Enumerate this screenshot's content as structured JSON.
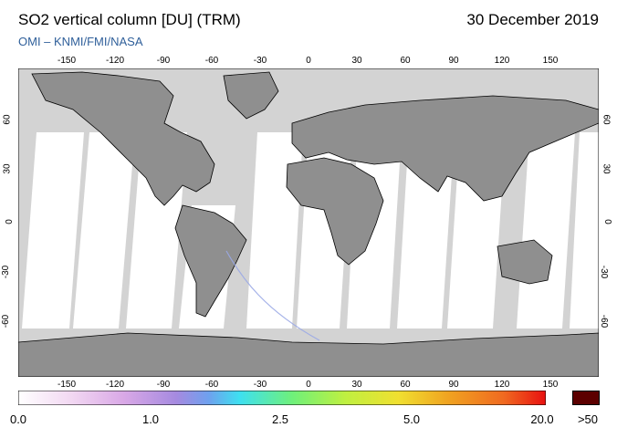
{
  "title": "SO2 vertical column [DU] (TRM)",
  "date": "30 December 2019",
  "source": "OMI  –  KNMI/FMI/NASA",
  "lon_ticks": [
    "-150",
    "-120",
    "-90",
    "-60",
    "-30",
    "0",
    "30",
    "60",
    "90",
    "120",
    "150"
  ],
  "lat_ticks": [
    "60",
    "30",
    "0",
    "-30",
    "-60"
  ],
  "colorbar": {
    "labels": [
      "0.0",
      "1.0",
      "2.5",
      "5.0",
      "20.0",
      ">50"
    ],
    "stops": [
      "#ffffff",
      "#f2d8f2",
      "#d9a8e6",
      "#a58ae0",
      "#6fa0ee",
      "#3ee0f0",
      "#6ff07a",
      "#bff040",
      "#f0e030",
      "#f0a020",
      "#f06a20",
      "#e81010"
    ],
    "overflow_color": "#5c0000"
  },
  "colors": {
    "land": "#8f8f8f",
    "no_data": "#d3d3d3",
    "swath": "#ffffff",
    "coastline": "#000000",
    "so2_trace": "#9aa8e6"
  }
}
